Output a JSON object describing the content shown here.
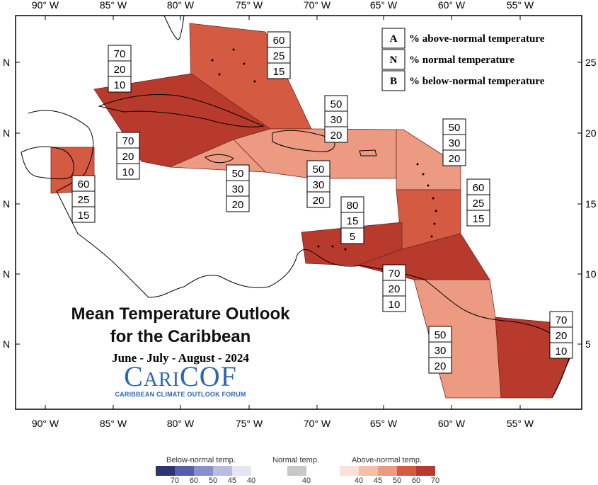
{
  "map": {
    "title_line1": "Mean Temperature Outlook",
    "title_line2": "for the Caribbean",
    "period": "June - July - August - 2024",
    "organization": {
      "name": "CariCOF",
      "subtitle": "CARIBBEAN CLIMATE OUTLOOK FORUM"
    },
    "legend": [
      {
        "key": "A",
        "label": "% above-normal temperature"
      },
      {
        "key": "N",
        "label": "% normal temperature"
      },
      {
        "key": "B",
        "label": "% below-normal temperature"
      }
    ],
    "lon_ticks": [
      "90° W",
      "85° W",
      "80° W",
      "75° W",
      "70° W",
      "65° W",
      "60° W",
      "55° W"
    ],
    "lat_ticks_left": [
      "N",
      "N",
      "N",
      "N",
      "N"
    ],
    "lat_ticks_right": [
      "25",
      "20",
      "15",
      "10",
      "5"
    ],
    "regions": [
      {
        "name": "bahamas",
        "probabilities": [
          "60",
          "25",
          "15"
        ],
        "fill": "#d45a42"
      },
      {
        "name": "cuba",
        "probabilities": [
          "70",
          "20",
          "10"
        ],
        "fill": "#b83a2c"
      },
      {
        "name": "cayman",
        "probabilities": [
          "70",
          "20",
          "10"
        ],
        "fill": "#b83a2c"
      },
      {
        "name": "belize",
        "probabilities": [
          "60",
          "25",
          "15"
        ],
        "fill": "#d45a42"
      },
      {
        "name": "hispaniola-north",
        "probabilities": [
          "50",
          "30",
          "20"
        ],
        "fill": "#ec9a82"
      },
      {
        "name": "jamaica",
        "probabilities": [
          "50",
          "30",
          "20"
        ],
        "fill": "#ec9a82"
      },
      {
        "name": "puerto-rico",
        "probabilities": [
          "50",
          "30",
          "20"
        ],
        "fill": "#ec9a82"
      },
      {
        "name": "northern-leewards",
        "probabilities": [
          "50",
          "30",
          "20"
        ],
        "fill": "#ec9a82"
      },
      {
        "name": "windwards",
        "probabilities": [
          "60",
          "25",
          "15"
        ],
        "fill": "#d45a42"
      },
      {
        "name": "abc-islands",
        "probabilities": [
          "80",
          "15",
          "5"
        ],
        "fill": "#b83a2c"
      },
      {
        "name": "trinidad",
        "probabilities": [
          "70",
          "20",
          "10"
        ],
        "fill": "#b83a2c"
      },
      {
        "name": "guyana",
        "probabilities": [
          "50",
          "30",
          "20"
        ],
        "fill": "#ec9a82"
      },
      {
        "name": "suriname",
        "probabilities": [
          "70",
          "20",
          "10"
        ],
        "fill": "#b83a2c"
      }
    ],
    "colorbar": {
      "below_label": "Below-normal temp.",
      "normal_label": "Normal temp.",
      "above_label": "Above-normal temp.",
      "below_values": [
        "70",
        "60",
        "50",
        "45",
        "40"
      ],
      "below_colors": [
        "#2e3470",
        "#5560a8",
        "#8790c8",
        "#b8bde0",
        "#e4e6f4"
      ],
      "normal_values": [
        "40"
      ],
      "normal_colors": [
        "#c8c8c8"
      ],
      "above_values": [
        "40",
        "45",
        "50",
        "60",
        "70"
      ],
      "above_colors": [
        "#fbe2d8",
        "#f6bfa8",
        "#ec9a82",
        "#d45a42",
        "#b83a2c"
      ]
    }
  }
}
